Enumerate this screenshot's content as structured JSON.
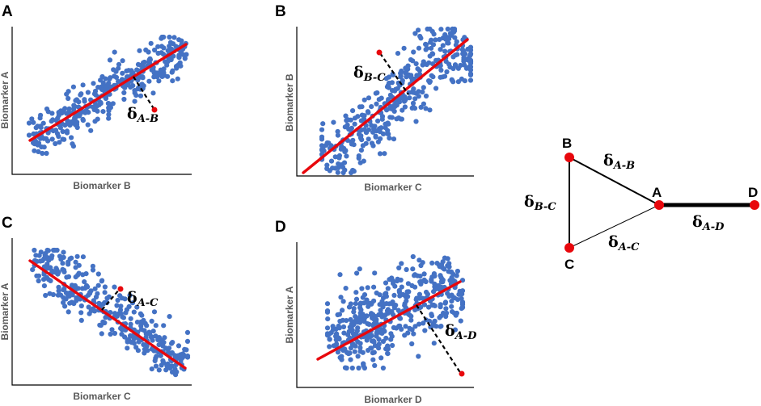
{
  "panels": [
    {
      "id": "A",
      "label": "A",
      "xlabel": "Biomarker B",
      "ylabel": "Biomarker A",
      "type": "scatter",
      "trend": "positive",
      "delta_main": "δ",
      "delta_sub": "A-B",
      "n_points": 360
    },
    {
      "id": "B",
      "label": "B",
      "xlabel": "Biomarker C",
      "ylabel": "Biomarker B",
      "type": "scatter",
      "trend": "positive",
      "delta_main": "δ",
      "delta_sub": "B-C",
      "n_points": 380
    },
    {
      "id": "C",
      "label": "C",
      "xlabel": "Biomarker C",
      "ylabel": "Biomarker A",
      "type": "scatter",
      "trend": "negative",
      "delta_main": "δ",
      "delta_sub": "A-C",
      "n_points": 340
    },
    {
      "id": "D",
      "label": "D",
      "xlabel": "Biomarker D",
      "ylabel": "Biomarker A",
      "type": "scatter",
      "trend": "positive",
      "delta_main": "δ",
      "delta_sub": "A-D",
      "n_points": 460
    }
  ],
  "network": {
    "nodes": [
      {
        "id": "A",
        "label": "A"
      },
      {
        "id": "B",
        "label": "B"
      },
      {
        "id": "C",
        "label": "C"
      },
      {
        "id": "D",
        "label": "D"
      }
    ],
    "edges": [
      {
        "from": "A",
        "to": "B",
        "delta_main": "δ",
        "delta_sub": "A-B",
        "weight": 2
      },
      {
        "from": "B",
        "to": "C",
        "delta_main": "δ",
        "delta_sub": "B-C",
        "weight": 2
      },
      {
        "from": "A",
        "to": "C",
        "delta_main": "δ",
        "delta_sub": "A-C",
        "weight": 1
      },
      {
        "from": "A",
        "to": "D",
        "delta_main": "δ",
        "delta_sub": "A-D",
        "weight": 5
      }
    ]
  },
  "colors": {
    "points": "#4472C4",
    "fit_line": "#E8070C",
    "outlier": "#E8070C",
    "node": "#E8070C",
    "axis_label": "#595959"
  }
}
